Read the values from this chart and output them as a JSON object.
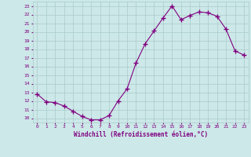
{
  "x": [
    0,
    1,
    2,
    3,
    4,
    5,
    6,
    7,
    8,
    9,
    10,
    11,
    12,
    13,
    14,
    15,
    16,
    17,
    18,
    19,
    20,
    21,
    22,
    23
  ],
  "y": [
    12.8,
    11.9,
    11.8,
    11.4,
    10.8,
    10.2,
    9.8,
    9.8,
    10.3,
    12.0,
    13.4,
    16.4,
    18.6,
    20.1,
    21.6,
    23.0,
    21.4,
    21.9,
    22.3,
    22.2,
    21.8,
    20.3,
    17.8,
    17.3
  ],
  "line_color": "#800080",
  "marker": "+",
  "marker_size": 4,
  "bg_color": "#cce8e8",
  "grid_color": "#aacaca",
  "tick_color": "#800080",
  "label_color": "#800080",
  "xlabel": "Windchill (Refroidissement éolien,°C)",
  "ylabel_ticks": [
    10,
    11,
    12,
    13,
    14,
    15,
    16,
    17,
    18,
    19,
    20,
    21,
    22,
    23
  ],
  "xlim": [
    -0.5,
    23.5
  ],
  "ylim": [
    9.5,
    23.5
  ],
  "xticks": [
    0,
    1,
    2,
    3,
    4,
    5,
    6,
    7,
    8,
    9,
    10,
    11,
    12,
    13,
    14,
    15,
    16,
    17,
    18,
    19,
    20,
    21,
    22,
    23
  ]
}
